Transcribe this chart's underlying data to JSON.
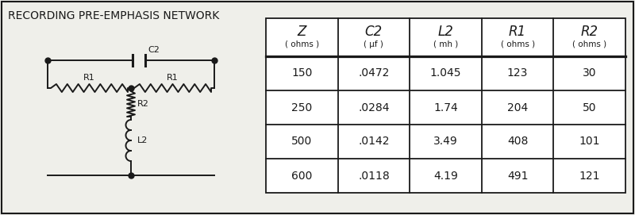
{
  "title": "RECORDING PRE-EMPHASIS NETWORK",
  "table_header_line1": [
    "Z",
    "C2",
    "L2",
    "R1",
    "R2"
  ],
  "table_header_line2": [
    "( ohms )",
    "( μf )",
    "( mh )",
    "( ohms )",
    "( ohms )"
  ],
  "table_data": [
    [
      "150",
      ".0472",
      "1.045",
      "123",
      "30"
    ],
    [
      "250",
      ".0284",
      "1.74",
      "204",
      "50"
    ],
    [
      "500",
      ".0142",
      "3.49",
      "408",
      "101"
    ],
    [
      "600",
      ".0118",
      "4.19",
      "491",
      "121"
    ]
  ],
  "bg_color": "#efefea",
  "border_color": "#1a1a1a",
  "text_color": "#1a1a1a",
  "fig_width": 8.0,
  "fig_height": 2.71
}
